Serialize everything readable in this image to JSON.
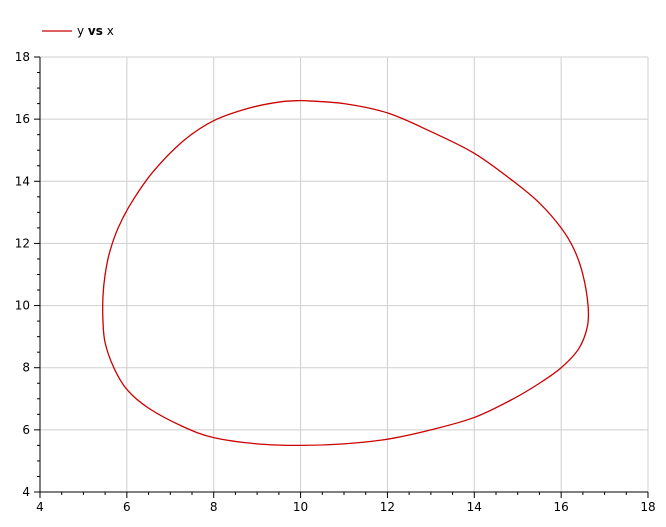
{
  "chart_data": {
    "type": "line",
    "title": "",
    "xlabel": "",
    "ylabel": "",
    "xlim": [
      4,
      18
    ],
    "ylim": [
      4,
      18
    ],
    "x_ticks": [
      4,
      6,
      8,
      10,
      12,
      14,
      16,
      18
    ],
    "y_ticks": [
      4,
      6,
      8,
      10,
      12,
      14,
      16,
      18
    ],
    "grid": true,
    "legend_position": "top-left",
    "legend": {
      "prefix": "y ",
      "emphasis": "vs",
      "suffix": " x"
    },
    "series": [
      {
        "color": "#cc0000",
        "x": [
          10.0,
          11.0,
          12.0,
          13.0,
          14.0,
          14.9,
          15.5,
          16.0,
          16.3,
          16.5,
          16.62,
          16.6,
          16.4,
          16.0,
          15.5,
          14.9,
          14.0,
          13.0,
          12.0,
          11.0,
          10.0,
          9.0,
          8.0,
          7.3,
          6.5,
          6.0,
          5.7,
          5.5,
          5.45,
          5.45,
          5.5,
          5.6,
          5.8,
          6.1,
          6.6,
          7.3,
          8.0,
          8.8,
          9.5,
          10.0
        ],
        "y": [
          16.6,
          16.5,
          16.2,
          15.6,
          14.9,
          14.0,
          13.3,
          12.5,
          11.8,
          11.0,
          10.0,
          9.3,
          8.6,
          8.0,
          7.5,
          7.0,
          6.4,
          6.0,
          5.7,
          5.55,
          5.5,
          5.55,
          5.75,
          6.1,
          6.7,
          7.3,
          8.0,
          8.8,
          9.5,
          10.3,
          11.0,
          11.7,
          12.5,
          13.3,
          14.3,
          15.3,
          15.95,
          16.35,
          16.55,
          16.6
        ]
      }
    ]
  }
}
